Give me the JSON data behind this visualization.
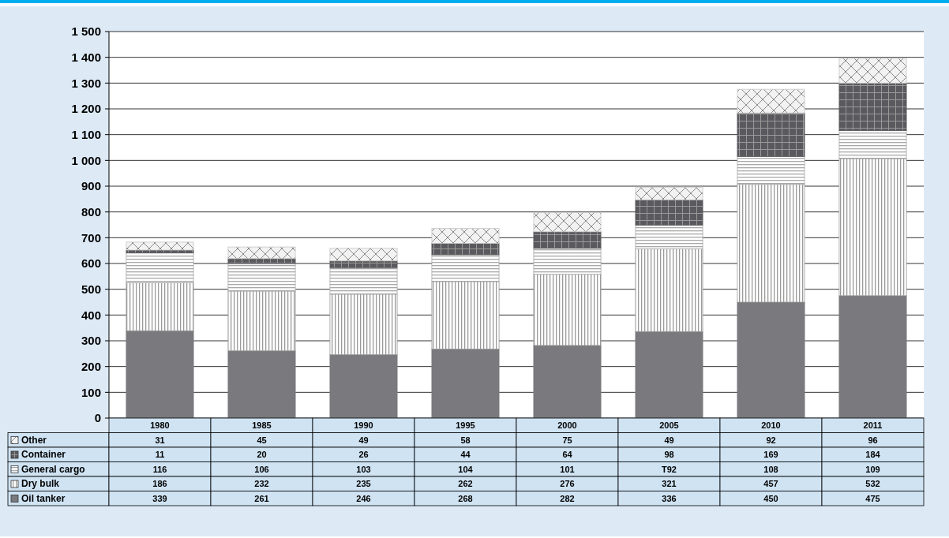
{
  "chart_data": {
    "type": "bar",
    "stacked": true,
    "categories": [
      "1980",
      "1985",
      "1990",
      "1995",
      "2000",
      "2005",
      "2010",
      "2011"
    ],
    "series": [
      {
        "name": "Oil tanker",
        "color": "#7a7a7e",
        "values": [
          339,
          261,
          246,
          268,
          282,
          336,
          450,
          475
        ],
        "value_labels": [
          "339",
          "261",
          "246",
          "268",
          "282",
          "336",
          "450",
          "475"
        ]
      },
      {
        "name": "Dry bulk",
        "color": "#9a9a9a",
        "values": [
          186,
          232,
          235,
          262,
          276,
          321,
          457,
          532
        ],
        "value_labels": [
          "186",
          "232",
          "235",
          "262",
          "276",
          "321",
          "457",
          "532"
        ]
      },
      {
        "name": "General cargo",
        "color": "#a8a8a8",
        "values": [
          116,
          106,
          103,
          104,
          101,
          92,
          108,
          109
        ],
        "value_labels": [
          "116",
          "106",
          "103",
          "104",
          "101",
          "T92",
          "108",
          "109"
        ]
      },
      {
        "name": "Container",
        "color": "#5a5a5e",
        "values": [
          11,
          20,
          26,
          44,
          64,
          98,
          169,
          184
        ],
        "value_labels": [
          "11",
          "20",
          "26",
          "44",
          "64",
          "98",
          "169",
          "184"
        ]
      },
      {
        "name": "Other",
        "color": "#c8c8c8",
        "values": [
          31,
          45,
          49,
          58,
          75,
          49,
          92,
          96
        ],
        "value_labels": [
          "31",
          "45",
          "49",
          "58",
          "75",
          "49",
          "92",
          "96"
        ]
      }
    ],
    "ylim": [
      0,
      1500
    ],
    "yticks": [
      0,
      100,
      200,
      300,
      400,
      500,
      600,
      700,
      800,
      900,
      {
        "value": 1000,
        "label": "1 000"
      },
      {
        "value": 1100,
        "label": "1 100"
      },
      {
        "value": 1200,
        "label": "1 200"
      },
      {
        "value": 1300,
        "label": "1 300"
      },
      {
        "value": 1400,
        "label": "1 400"
      },
      {
        "value": 1500,
        "label": "1 500"
      }
    ],
    "grid": "y",
    "legend": "bottom"
  }
}
